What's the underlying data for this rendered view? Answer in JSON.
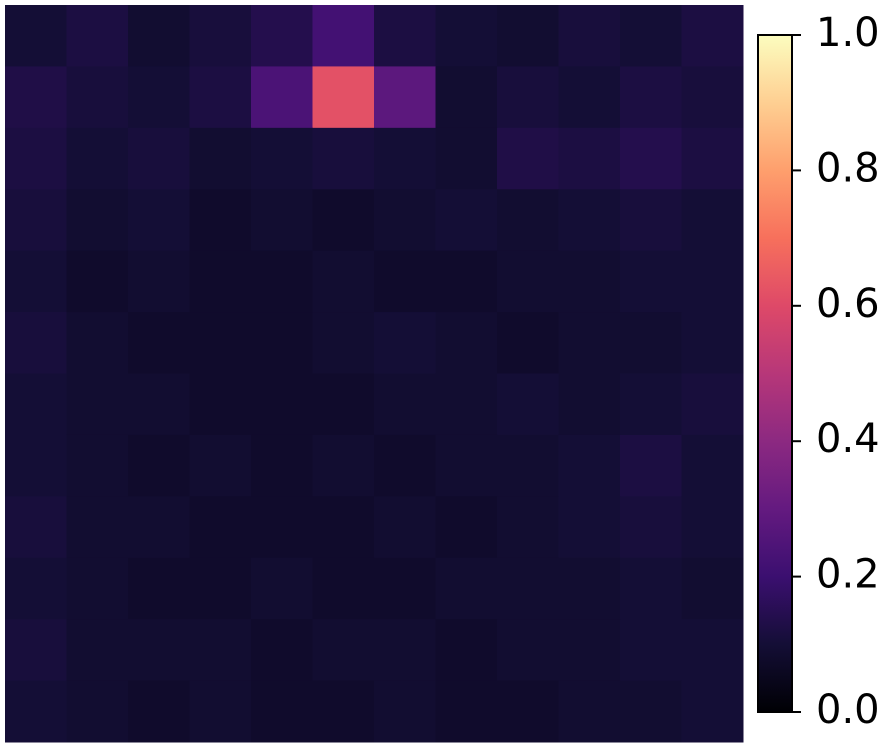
{
  "chart_data": {
    "type": "heatmap",
    "colormap": "magma",
    "values": [
      [
        0.1,
        0.12,
        0.09,
        0.11,
        0.14,
        0.22,
        0.12,
        0.1,
        0.09,
        0.11,
        0.1,
        0.12
      ],
      [
        0.13,
        0.11,
        0.1,
        0.12,
        0.24,
        0.62,
        0.28,
        0.09,
        0.11,
        0.1,
        0.12,
        0.11
      ],
      [
        0.12,
        0.1,
        0.11,
        0.09,
        0.1,
        0.11,
        0.1,
        0.09,
        0.13,
        0.12,
        0.14,
        0.12
      ],
      [
        0.11,
        0.09,
        0.1,
        0.08,
        0.09,
        0.08,
        0.09,
        0.1,
        0.09,
        0.1,
        0.11,
        0.1
      ],
      [
        0.1,
        0.08,
        0.09,
        0.08,
        0.08,
        0.09,
        0.08,
        0.08,
        0.09,
        0.09,
        0.1,
        0.1
      ],
      [
        0.11,
        0.09,
        0.08,
        0.08,
        0.08,
        0.09,
        0.1,
        0.09,
        0.08,
        0.09,
        0.09,
        0.1
      ],
      [
        0.1,
        0.09,
        0.09,
        0.08,
        0.08,
        0.08,
        0.09,
        0.09,
        0.1,
        0.09,
        0.1,
        0.11
      ],
      [
        0.1,
        0.09,
        0.08,
        0.09,
        0.08,
        0.09,
        0.08,
        0.09,
        0.09,
        0.1,
        0.12,
        0.1
      ],
      [
        0.11,
        0.09,
        0.09,
        0.08,
        0.08,
        0.08,
        0.09,
        0.08,
        0.09,
        0.1,
        0.11,
        0.1
      ],
      [
        0.1,
        0.09,
        0.08,
        0.08,
        0.09,
        0.08,
        0.08,
        0.09,
        0.09,
        0.09,
        0.1,
        0.09
      ],
      [
        0.11,
        0.09,
        0.09,
        0.09,
        0.08,
        0.09,
        0.09,
        0.08,
        0.09,
        0.09,
        0.1,
        0.1
      ],
      [
        0.1,
        0.09,
        0.08,
        0.09,
        0.08,
        0.08,
        0.09,
        0.08,
        0.08,
        0.09,
        0.09,
        0.1
      ]
    ],
    "clim": [
      0,
      1
    ],
    "cticks": [
      {
        "value": 0,
        "label": "0.0"
      },
      0.2,
      0.4,
      0.6,
      0.8,
      {
        "value": 1,
        "label": "1.0"
      }
    ]
  }
}
